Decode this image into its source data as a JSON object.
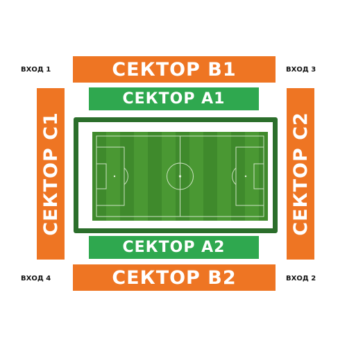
{
  "sectors": {
    "b1": "СЕКТОР B1",
    "b2": "СЕКТОР B2",
    "a1": "СЕКТОР A1",
    "a2": "СЕКТОР A2",
    "c1": "СЕКТОР C1",
    "c2": "СЕКТОР C2"
  },
  "entrances": {
    "e1": "ВХОД 1",
    "e2": "ВХОД 2",
    "e3": "ВХОД 3",
    "e4": "ВХОД 4"
  },
  "colors": {
    "outer_sectors": "#EE7523",
    "inner_sectors": "#2FA84F",
    "pitch_frame": "#2B6E2B",
    "grass": "#3F8A2C"
  }
}
